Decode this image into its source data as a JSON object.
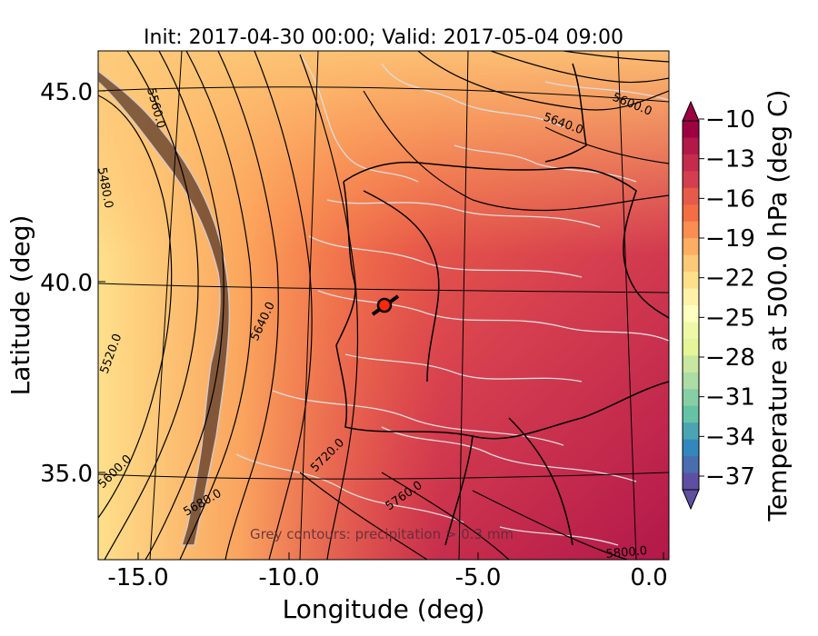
{
  "title": "Init: 2017-04-30 00:00; Valid: 2017-05-04 09:00",
  "xlabel": "Longitude (deg)",
  "ylabel": "Latitude (deg)",
  "x_ticks": [
    "-15.0",
    "-10.0",
    "-5.0",
    "0.0"
  ],
  "y_ticks": [
    "45.0",
    "40.0",
    "35.0"
  ],
  "colorbar": {
    "label": "Temperature at 500.0 hPa (deg C)",
    "ticks": [
      "−10",
      "−13",
      "−16",
      "−19",
      "−22",
      "−25",
      "−28",
      "−31",
      "−34",
      "−37"
    ],
    "colors": [
      "#9e0142",
      "#b2184a",
      "#c42b4d",
      "#d53e4f",
      "#e55a48",
      "#f46d43",
      "#f98d52",
      "#fdae61",
      "#fdc878",
      "#fee08b",
      "#fff1a8",
      "#ffffbf",
      "#eff8a6",
      "#e6f598",
      "#c7e89e",
      "#abdda4",
      "#88ceA4",
      "#66c2a5",
      "#4ba4b1",
      "#3288bd",
      "#4a6db0",
      "#5e4fa2"
    ]
  },
  "contour_labels": [
    "5560.0",
    "5480.0",
    "5520.0",
    "5600.0",
    "5640.0",
    "5680.0",
    "5720.0",
    "5760.0",
    "5800.0",
    "5640.0",
    "5600.0"
  ],
  "annotation": "Grey contours: precipitation > 0.3 mm",
  "marker": "location-marker"
}
